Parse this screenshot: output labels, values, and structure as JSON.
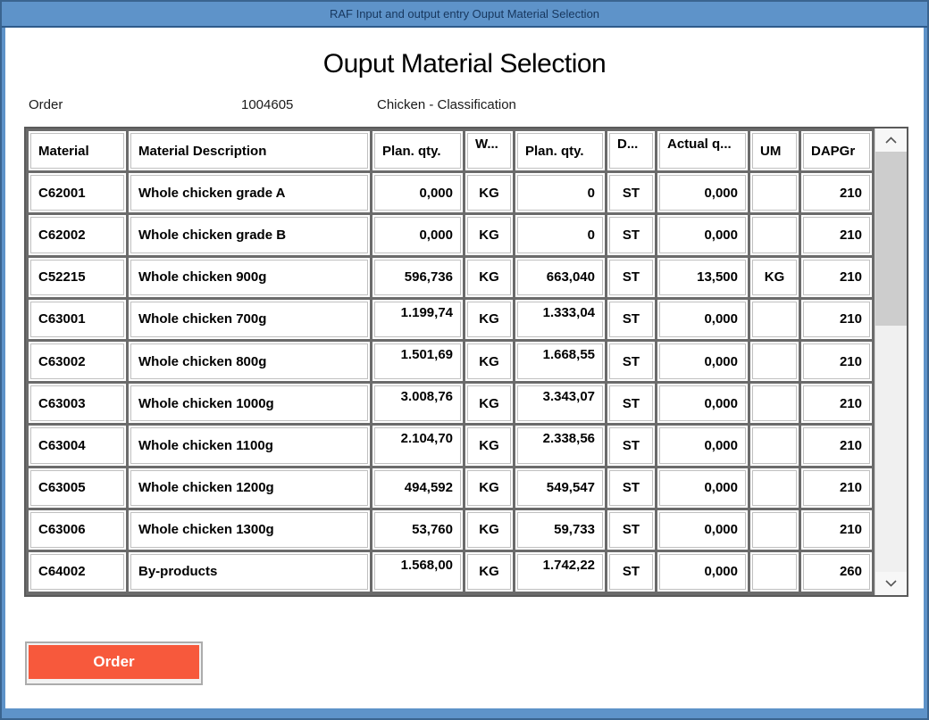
{
  "window": {
    "titlebar": "RAF Input and output entry Ouput Material Selection"
  },
  "header": {
    "title": "Ouput Material Selection"
  },
  "order_info": {
    "label": "Order",
    "number": "1004605",
    "description": "Chicken - Classification"
  },
  "table": {
    "columns": [
      "Material",
      "Material Description",
      "Plan. qty.",
      "W...",
      "Plan. qty.",
      "D...",
      "Actual q...",
      "UM",
      "DAPGr"
    ],
    "rows": [
      [
        "C62001",
        "Whole chicken grade A",
        "0,000",
        "KG",
        "0",
        "ST",
        "0,000",
        "",
        "210"
      ],
      [
        "C62002",
        "Whole chicken grade B",
        "0,000",
        "KG",
        "0",
        "ST",
        "0,000",
        "",
        "210"
      ],
      [
        "C52215",
        "Whole chicken 900g",
        "596,736",
        "KG",
        "663,040",
        "ST",
        "13,500",
        "KG",
        "210"
      ],
      [
        "C63001",
        "Whole chicken 700g",
        "1.199,74",
        "KG",
        "1.333,04",
        "ST",
        "0,000",
        "",
        "210"
      ],
      [
        "C63002",
        "Whole chicken 800g",
        "1.501,69",
        "KG",
        "1.668,55",
        "ST",
        "0,000",
        "",
        "210"
      ],
      [
        "C63003",
        "Whole chicken 1000g",
        "3.008,76",
        "KG",
        "3.343,07",
        "ST",
        "0,000",
        "",
        "210"
      ],
      [
        "C63004",
        "Whole chicken 1100g",
        "2.104,70",
        "KG",
        "2.338,56",
        "ST",
        "0,000",
        "",
        "210"
      ],
      [
        "C63005",
        "Whole chicken 1200g",
        "494,592",
        "KG",
        "549,547",
        "ST",
        "0,000",
        "",
        "210"
      ],
      [
        "C63006",
        "Whole chicken 1300g",
        "53,760",
        "KG",
        "59,733",
        "ST",
        "0,000",
        "",
        "210"
      ],
      [
        "C64002",
        "By-products",
        "1.568,00",
        "KG",
        "1.742,22",
        "ST",
        "0,000",
        "",
        "260"
      ]
    ]
  },
  "footer": {
    "order_button": "Order"
  },
  "colors": {
    "titlebar_blue": "#5E93C9",
    "frame_border": "#3A648F",
    "grid_line": "#6B6B6B",
    "button_orange": "#F7593C",
    "scroll_thumb": "#CDCDCD"
  }
}
